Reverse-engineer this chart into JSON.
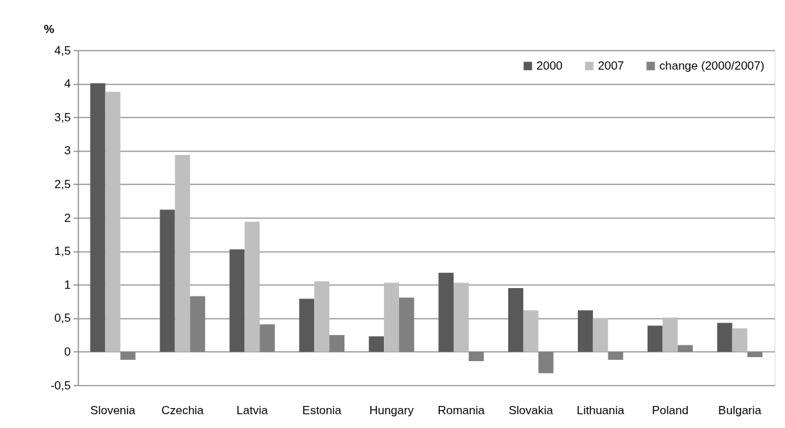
{
  "chart_data": {
    "type": "bar",
    "ylabel": "%",
    "categories": [
      "Slovenia",
      "Czechia",
      "Latvia",
      "Estonia",
      "Hungary",
      "Romania",
      "Slovakia",
      "Lithuania",
      "Poland",
      "Bulgaria"
    ],
    "series": [
      {
        "name": "2000",
        "color": "#595959",
        "values": [
          4.01,
          2.12,
          1.53,
          0.79,
          0.23,
          1.18,
          0.95,
          0.62,
          0.39,
          0.43
        ]
      },
      {
        "name": "2007",
        "color": "#bfbfbf",
        "values": [
          3.88,
          2.94,
          1.94,
          1.05,
          1.03,
          1.03,
          0.62,
          0.5,
          0.51,
          0.35
        ]
      },
      {
        "name": "change (2000/2007)",
        "color": "#808080",
        "values": [
          -0.12,
          0.83,
          0.41,
          0.25,
          0.81,
          -0.14,
          -0.32,
          -0.12,
          0.1,
          -0.08
        ]
      }
    ],
    "ylim": [
      -0.5,
      4.5
    ],
    "yticks": [
      {
        "value": -0.5,
        "label": "-0,5"
      },
      0,
      {
        "value": 0.5,
        "label": "0,5"
      },
      1,
      {
        "value": 1.5,
        "label": "1,5"
      },
      2,
      {
        "value": 2.5,
        "label": "2,5"
      },
      3,
      {
        "value": 3.5,
        "label": "3,5"
      },
      4,
      {
        "value": 4.5,
        "label": "4,5"
      }
    ],
    "grid": "y",
    "legend": "top right"
  }
}
